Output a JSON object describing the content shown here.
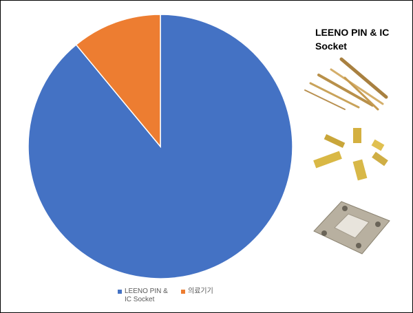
{
  "chart_data": {
    "type": "pie",
    "categories": [
      "LEENO PIN & IC Socket",
      "의료기기"
    ],
    "values": [
      89,
      11
    ],
    "colors": [
      "#4472c4",
      "#ed7d31"
    ],
    "annotation": "LEENO PIN & IC Socket",
    "legend": "bottom"
  }
}
